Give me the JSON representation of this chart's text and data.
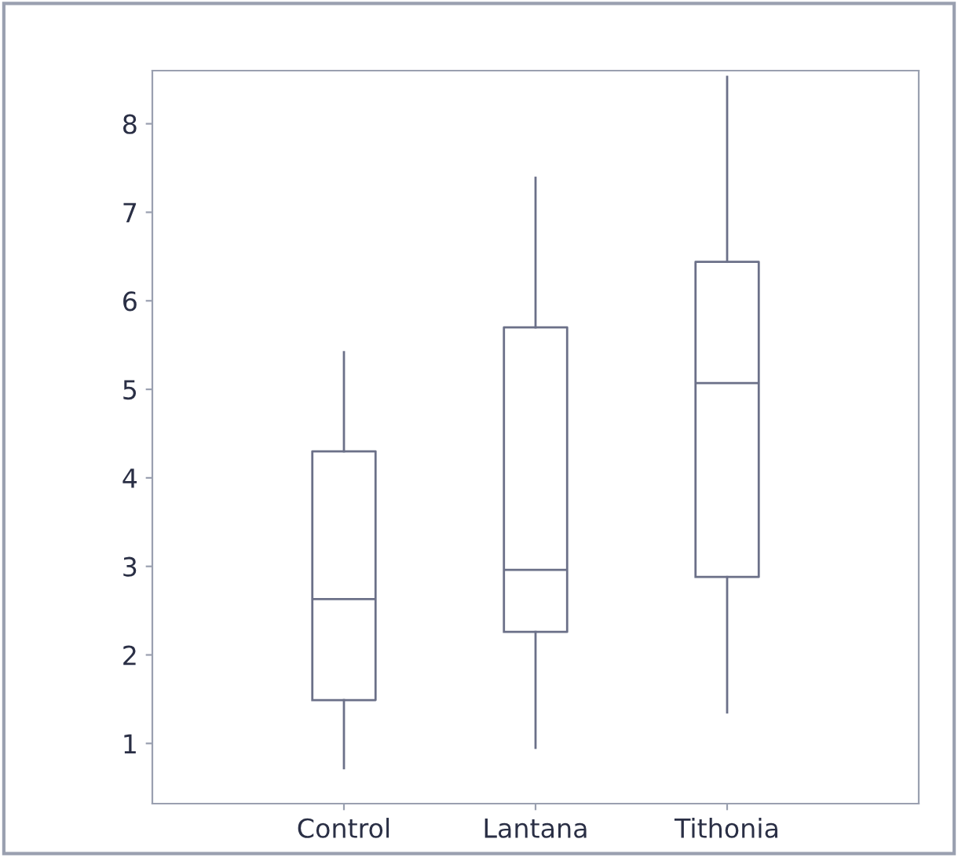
{
  "chart_data": {
    "type": "box",
    "categories": [
      "Control",
      "Lantana",
      "Tithonia"
    ],
    "boxes": [
      {
        "low": 0.72,
        "q1": 1.49,
        "median": 2.63,
        "q3": 4.3,
        "high": 5.42
      },
      {
        "low": 0.95,
        "q1": 2.26,
        "median": 2.96,
        "q3": 5.7,
        "high": 7.39
      },
      {
        "low": 1.35,
        "q1": 2.88,
        "median": 5.07,
        "q3": 6.44,
        "high": 8.53
      }
    ],
    "color": "#6b7088",
    "ylim": [
      0.32,
      8.6
    ],
    "yticks": [
      1,
      2,
      3,
      4,
      5,
      6,
      7,
      8
    ],
    "grid": false
  }
}
